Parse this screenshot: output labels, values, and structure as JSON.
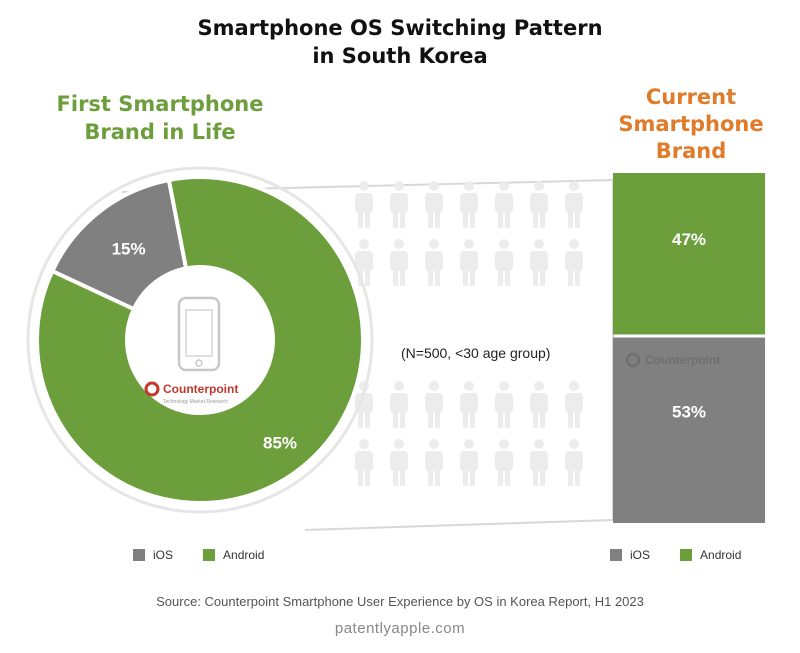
{
  "title_lines": [
    "Smartphone OS Switching Pattern",
    "in South Korea"
  ],
  "left_heading_lines": [
    "First Smartphone",
    "Brand in Life"
  ],
  "right_heading_lines": [
    "Current",
    "Smartphone",
    "Brand"
  ],
  "sample_note": "(N=500, <30 age group)",
  "logo_text": "Counterpoint",
  "logo_subtext": "Technology Market Research",
  "legend": [
    {
      "label": "iOS",
      "color": "#808080",
      "icon": "ios-swatch"
    },
    {
      "label": "Android",
      "color": "#6d9e3c",
      "icon": "android-swatch"
    }
  ],
  "source": "Source: Counterpoint Smartphone User Experience by OS in Korea Report, H1 2023",
  "credit": "patentlyapple.com",
  "colors": {
    "android": "#6d9e3c",
    "ios": "#808080",
    "left_heading": "#6d9e3c",
    "right_heading": "#e07b2a",
    "people": "#ececec"
  },
  "chart_data": [
    {
      "type": "pie",
      "title": "First Smartphone Brand in Life",
      "categories": [
        "iOS",
        "Android"
      ],
      "values": [
        15,
        85
      ],
      "labels": [
        "15%",
        "85%"
      ],
      "colors": [
        "#808080",
        "#6d9e3c"
      ],
      "donut": true,
      "legend_position": "bottom-left"
    },
    {
      "type": "bar",
      "stacked": true,
      "title": "Current Smartphone Brand",
      "categories": [
        "Android",
        "iOS"
      ],
      "values": [
        47,
        53
      ],
      "labels": [
        "47%",
        "53%"
      ],
      "colors": [
        "#6d9e3c",
        "#808080"
      ],
      "legend_position": "bottom-right"
    }
  ]
}
